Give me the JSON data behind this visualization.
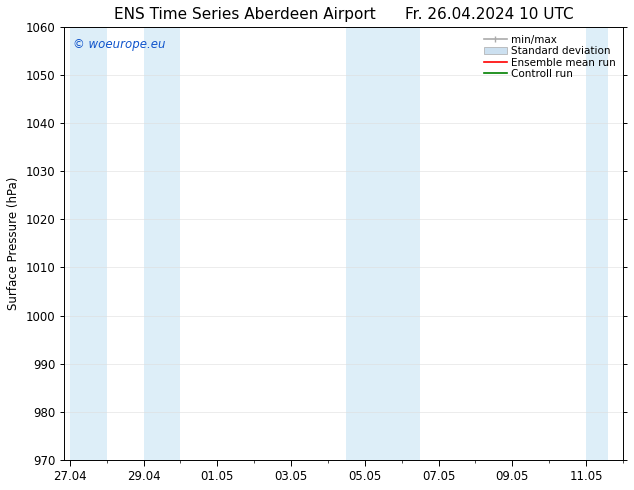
{
  "title": "ENS Time Series Aberdeen Airport",
  "title2": "Fr. 26.04.2024 10 UTC",
  "ylabel": "Surface Pressure (hPa)",
  "ylim": [
    970,
    1060
  ],
  "yticks": [
    970,
    980,
    990,
    1000,
    1010,
    1020,
    1030,
    1040,
    1050,
    1060
  ],
  "xtick_labels": [
    "27.04",
    "29.04",
    "01.05",
    "03.05",
    "05.05",
    "07.05",
    "09.05",
    "11.05"
  ],
  "band_color": "#ddeef8",
  "watermark_text": "© woeurope.eu",
  "watermark_color": "#1155cc",
  "legend_items": [
    {
      "label": "min/max",
      "color": "#999999",
      "type": "errorbar"
    },
    {
      "label": "Standard deviation",
      "color": "#cce0f0",
      "type": "bar"
    },
    {
      "label": "Ensemble mean run",
      "color": "red",
      "type": "line"
    },
    {
      "label": "Controll run",
      "color": "green",
      "type": "line"
    }
  ],
  "bg_color": "white",
  "title_fontsize": 11,
  "axis_fontsize": 8.5
}
